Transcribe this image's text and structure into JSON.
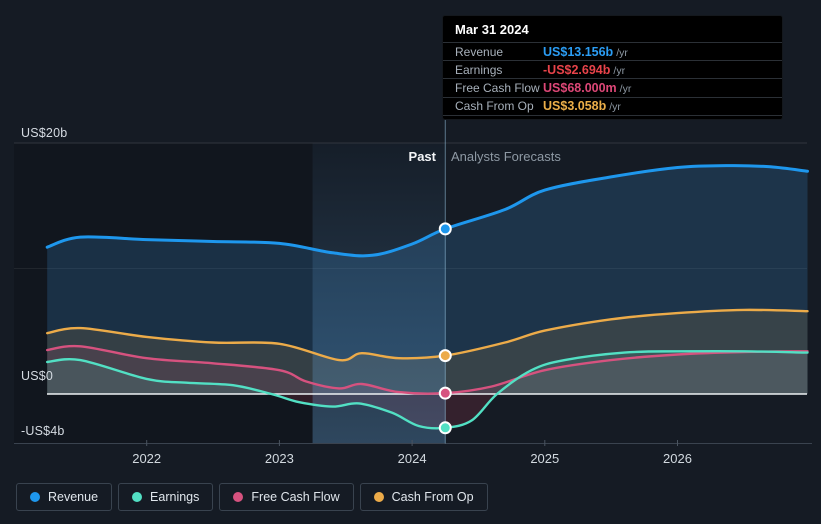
{
  "tooltip": {
    "date": "Mar 31 2024",
    "rows": [
      {
        "label": "Revenue",
        "value": "US$13.156b",
        "suffix": "/yr",
        "color": "#2b9df4"
      },
      {
        "label": "Earnings",
        "value": "-US$2.694b",
        "suffix": "/yr",
        "color": "#e8434a"
      },
      {
        "label": "Free Cash Flow",
        "value": "US$68.000m",
        "suffix": "/yr",
        "color": "#dd4777"
      },
      {
        "label": "Cash From Op",
        "value": "US$3.058b",
        "suffix": "/yr",
        "color": "#ecaf49"
      }
    ]
  },
  "annotations": {
    "past": "Past",
    "forecast": "Analysts Forecasts"
  },
  "y_axis": {
    "labels": [
      {
        "text": "US$20b",
        "value": 20
      },
      {
        "text": "US$0",
        "value": 0
      },
      {
        "text": "-US$4b",
        "value": -4
      }
    ]
  },
  "x_axis": {
    "labels": [
      {
        "text": "2022",
        "value": 2022
      },
      {
        "text": "2023",
        "value": 2023
      },
      {
        "text": "2024",
        "value": 2024
      },
      {
        "text": "2025",
        "value": 2025
      },
      {
        "text": "2026",
        "value": 2026
      }
    ]
  },
  "legend": [
    {
      "label": "Revenue",
      "color": "#1e97ed"
    },
    {
      "label": "Earnings",
      "color": "#52e0c4"
    },
    {
      "label": "Free Cash Flow",
      "color": "#d6527f"
    },
    {
      "label": "Cash From Op",
      "color": "#ecab49"
    }
  ],
  "chart_data": {
    "type": "area",
    "title": "Earnings and Revenue Growth — past and analyst forecasts",
    "unit": "US$ billions per year",
    "x_domain": [
      2021,
      2027
    ],
    "y_domain": [
      -4.4,
      20
    ],
    "gridlines_b": [
      20,
      10,
      0,
      -4
    ],
    "now_x": 2024.25,
    "past_band_start": 2023.25,
    "series": [
      {
        "name": "Revenue",
        "color": "#1e97ed",
        "width": 3,
        "fill": "rgba(60,140,210,0.22)",
        "x": [
          2021.25,
          2021.5,
          2022.0,
          2022.5,
          2023.0,
          2023.4,
          2023.7,
          2024.0,
          2024.25,
          2024.7,
          2025.0,
          2025.5,
          2026.0,
          2026.4,
          2026.7,
          2026.98
        ],
        "values": [
          11.7,
          12.5,
          12.3,
          12.15,
          12.0,
          11.25,
          11.05,
          11.95,
          13.156,
          14.7,
          16.25,
          17.3,
          18.05,
          18.2,
          18.1,
          17.75
        ]
      },
      {
        "name": "Cash From Op",
        "color": "#ecab49",
        "width": 2.4,
        "fill": "rgba(235,170,70,0.13)",
        "x": [
          2021.25,
          2021.5,
          2022.0,
          2022.5,
          2023.0,
          2023.45,
          2023.62,
          2023.9,
          2024.25,
          2024.7,
          2025.0,
          2025.5,
          2026.0,
          2026.5,
          2026.98
        ],
        "values": [
          4.85,
          5.25,
          4.55,
          4.1,
          4.0,
          2.7,
          3.25,
          2.85,
          3.058,
          4.1,
          5.05,
          5.95,
          6.45,
          6.7,
          6.6
        ]
      },
      {
        "name": "Free Cash Flow",
        "color": "#d6527f",
        "width": 2.4,
        "fill": "rgba(225,80,130,0.12)",
        "x": [
          2021.25,
          2021.5,
          2022.0,
          2022.5,
          2023.0,
          2023.2,
          2023.45,
          2023.62,
          2023.9,
          2024.25,
          2024.6,
          2025.0,
          2025.5,
          2026.0,
          2026.5,
          2026.98
        ],
        "values": [
          3.5,
          3.8,
          2.85,
          2.45,
          1.9,
          1.0,
          0.45,
          0.8,
          0.15,
          0.068,
          0.6,
          1.9,
          2.7,
          3.15,
          3.35,
          3.4
        ]
      },
      {
        "name": "Earnings",
        "color": "#52e0c4",
        "width": 2.4,
        "fill": "rgba(85,225,200,0.13)",
        "fill_negative": "rgba(215,70,95,0.16)",
        "x": [
          2021.25,
          2021.5,
          2022.0,
          2022.3,
          2022.65,
          2022.94,
          2023.15,
          2023.4,
          2023.6,
          2023.85,
          2024.05,
          2024.25,
          2024.45,
          2024.64,
          2024.9,
          2025.15,
          2025.6,
          2026.0,
          2026.5,
          2026.98
        ],
        "values": [
          2.55,
          2.7,
          1.2,
          0.9,
          0.7,
          0.0,
          -0.65,
          -1.0,
          -0.75,
          -1.5,
          -2.55,
          -2.694,
          -2.1,
          0.0,
          1.9,
          2.7,
          3.3,
          3.4,
          3.4,
          3.3
        ]
      }
    ],
    "markers": [
      {
        "series": "Revenue",
        "value": 13.156
      },
      {
        "series": "Cash From Op",
        "value": 3.058
      },
      {
        "series": "Free Cash Flow",
        "value": 0.068
      },
      {
        "series": "Earnings",
        "value": -2.694
      }
    ]
  }
}
